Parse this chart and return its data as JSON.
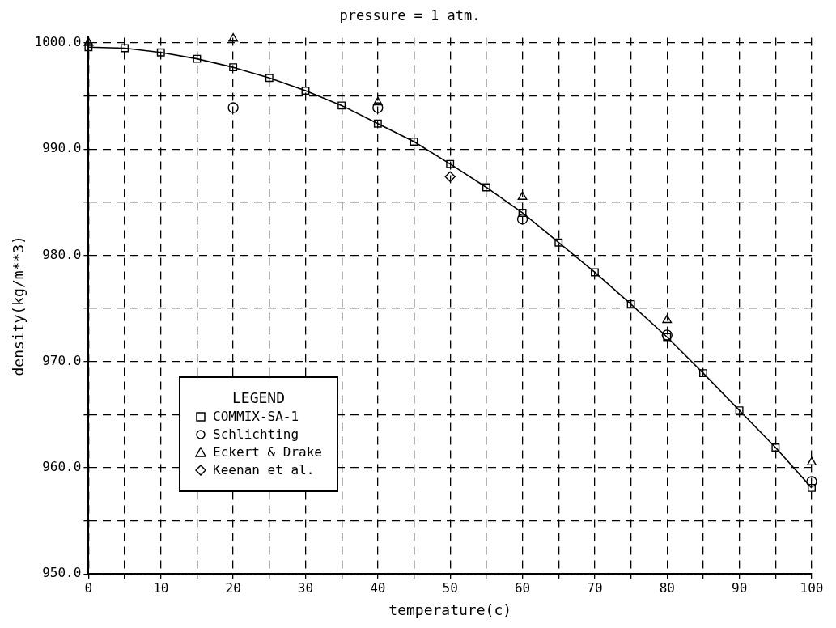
{
  "chart_data": {
    "type": "line",
    "title": "pressure = 1 atm.",
    "xlabel": "temperature(c)",
    "ylabel": "density(kg/m**3)",
    "legend_title": "LEGEND",
    "xlim": [
      0,
      100
    ],
    "ylim": [
      950,
      1000.5
    ],
    "xticks": [
      0,
      {
        "value": 5,
        "label": null
      },
      10,
      {
        "value": 15,
        "label": null
      },
      20,
      {
        "value": 25,
        "label": null
      },
      30,
      {
        "value": 35,
        "label": null
      },
      40,
      {
        "value": 45,
        "label": null
      },
      50,
      {
        "value": 55,
        "label": null
      },
      60,
      {
        "value": 65,
        "label": null
      },
      70,
      {
        "value": 75,
        "label": null
      },
      80,
      {
        "value": 85,
        "label": null
      },
      90,
      {
        "value": 95,
        "label": null
      },
      100
    ],
    "yticks": [
      {
        "value": 950,
        "label": "950.0"
      },
      {
        "value": 955,
        "label": null
      },
      {
        "value": 960,
        "label": "960.0"
      },
      {
        "value": 965,
        "label": null
      },
      {
        "value": 970,
        "label": "970.0"
      },
      {
        "value": 975,
        "label": null
      },
      {
        "value": 980,
        "label": "980.0"
      },
      {
        "value": 985,
        "label": null
      },
      {
        "value": 990,
        "label": "990.0"
      },
      {
        "value": 995,
        "label": null
      },
      {
        "value": 1000,
        "label": "1000.0"
      }
    ],
    "grid": true,
    "legend": "bottom left",
    "series": [
      {
        "name": "COMMIX-SA-1",
        "type": "line",
        "marker": "square",
        "line_style": "solid",
        "color": "#000000",
        "x": [
          0,
          5,
          10,
          15,
          20,
          25,
          30,
          35,
          40,
          45,
          50,
          55,
          60,
          65,
          70,
          75,
          80,
          85,
          90,
          95,
          100
        ],
        "values": [
          999.6,
          999.5,
          999.1,
          998.5,
          997.7,
          996.7,
          995.5,
          994.1,
          992.4,
          990.7,
          988.6,
          986.4,
          984.0,
          981.2,
          978.4,
          975.4,
          972.3,
          968.9,
          965.4,
          961.9,
          958.1
        ]
      },
      {
        "name": "Schlichting",
        "type": "scatter",
        "marker": "circle",
        "color": "#000000",
        "x": [
          20,
          40,
          60,
          80,
          100
        ],
        "values": [
          993.9,
          993.9,
          983.4,
          972.5,
          958.7
        ]
      },
      {
        "name": "Eckert & Drake",
        "type": "scatter",
        "marker": "triangle",
        "color": "#000000",
        "x": [
          0,
          20,
          40,
          60,
          80,
          100
        ],
        "values": [
          1000.0,
          1000.4,
          994.4,
          985.5,
          973.9,
          960.5
        ]
      },
      {
        "name": "Keenan et al.",
        "type": "scatter",
        "marker": "diamond",
        "color": "#000000",
        "x": [
          50
        ],
        "values": [
          987.4
        ]
      }
    ]
  }
}
